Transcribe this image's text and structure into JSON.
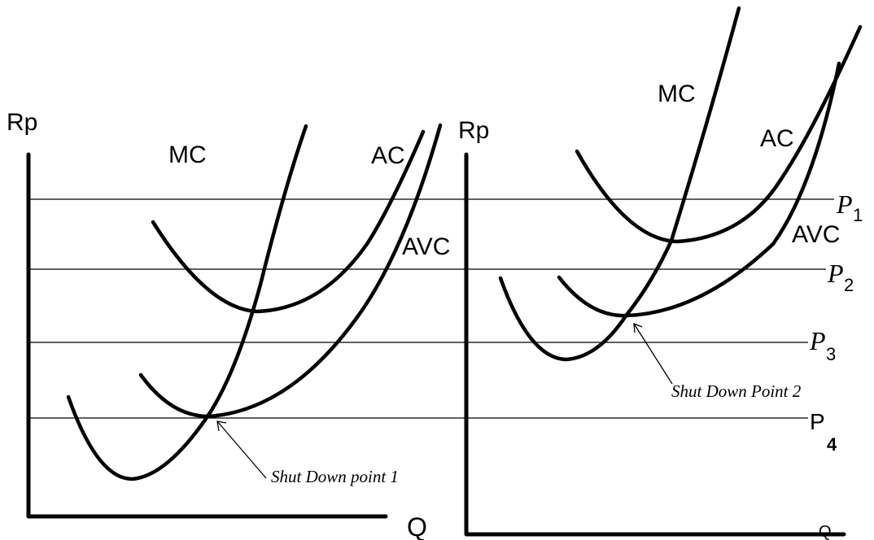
{
  "left": {
    "y_axis_label": "Rp",
    "x_axis_label": "Q",
    "mc_label": "MC",
    "ac_label": "AC",
    "avc_label": "AVC",
    "annotation": "Shut Down point 1"
  },
  "right": {
    "y_axis_label": "Rp",
    "x_axis_label": "Q",
    "mc_label": "MC",
    "ac_label": "AC",
    "avc_label": "AVC",
    "annotation": "Shut Down Point 2",
    "p1": {
      "base": "P",
      "sub": "1"
    },
    "p2": {
      "base": "P",
      "sub": "2"
    },
    "p3": {
      "base": "P",
      "sub": "3"
    },
    "p4": {
      "base": "P",
      "sub": "4"
    }
  }
}
